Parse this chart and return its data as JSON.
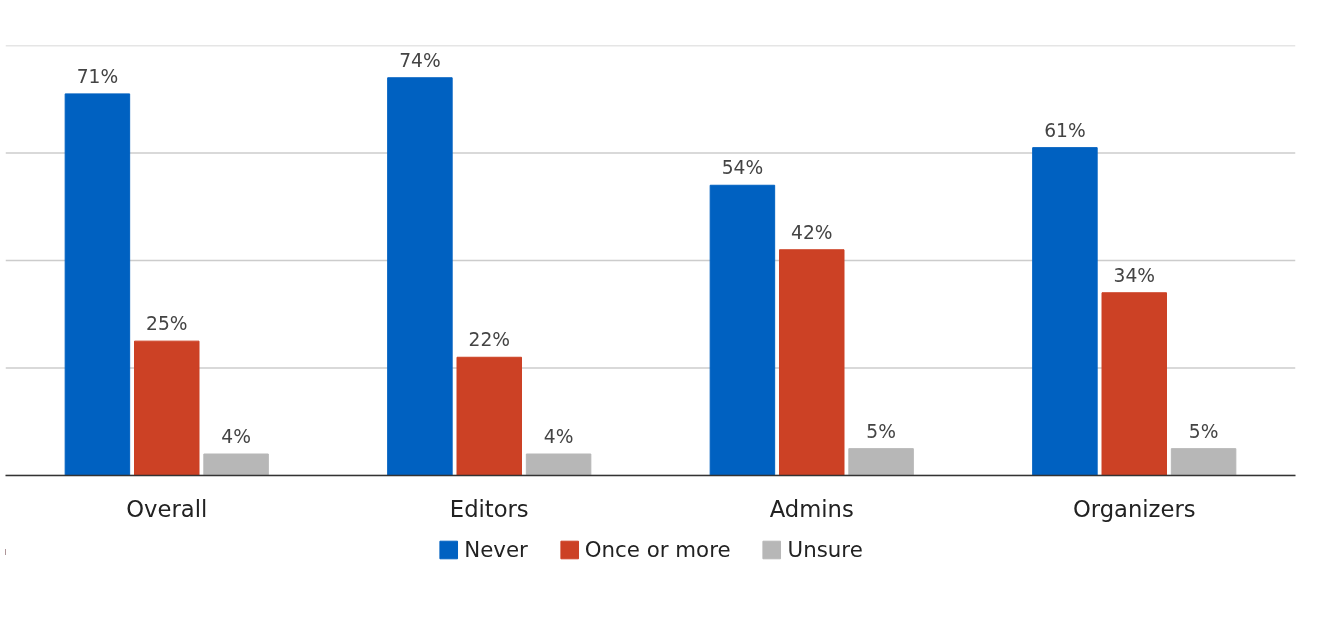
{
  "chart_data": {
    "type": "bar",
    "categories": [
      "Overall",
      "Editors",
      "Admins",
      "Organizers"
    ],
    "series": [
      {
        "name": "Never",
        "color": "#0061c1",
        "values": [
          71,
          74,
          54,
          61
        ],
        "value_labels": [
          "71%",
          "74%",
          "54%",
          "61%"
        ]
      },
      {
        "name": "Once or more",
        "color": "#cc4125",
        "values": [
          25,
          22,
          42,
          34
        ],
        "value_labels": [
          "25%",
          "22%",
          "42%",
          "34%"
        ]
      },
      {
        "name": "Unsure",
        "color": "#b7b7b7",
        "values": [
          4,
          4,
          5,
          5
        ],
        "value_labels": [
          "4%",
          "4%",
          "5%",
          "5%"
        ]
      }
    ],
    "ylim": [
      0,
      80
    ],
    "yticks": [
      {
        "value": 0,
        "label": null
      },
      {
        "value": 20,
        "label": null
      },
      {
        "value": 40,
        "label": null
      },
      {
        "value": 60,
        "label": null
      },
      {
        "value": 80,
        "label": null
      }
    ],
    "grid": "y",
    "legend": "bottom",
    "tick_labels": "x"
  }
}
